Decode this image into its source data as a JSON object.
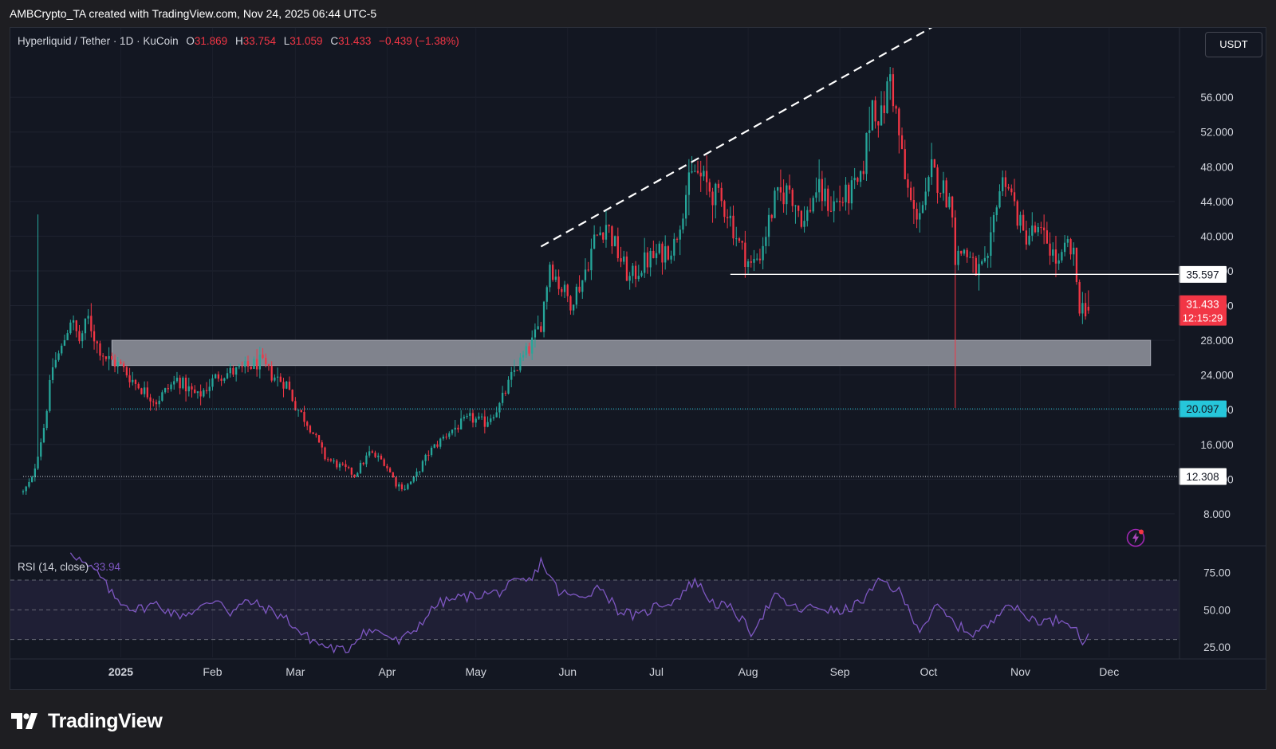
{
  "caption": "AMBCrypto_TA created with TradingView.com, Nov 24, 2025 06:44 UTC-5",
  "legend": {
    "symbol": "Hyperliquid / Tether · 1D · KuCoin",
    "o_label": "O",
    "o": "31.869",
    "h_label": "H",
    "h": "33.754",
    "l_label": "L",
    "l": "31.059",
    "c_label": "C",
    "c": "31.433",
    "change": "−0.439 (−1.38%)"
  },
  "currency_button": "USDT",
  "rsi_legend": {
    "label": "RSI (14, close)",
    "value": "33.94"
  },
  "branding": {
    "wordmark": "TradingView"
  },
  "colors": {
    "up": "#26a69a",
    "down": "#f23645",
    "rsi": "#7e57c2",
    "level_cyan": "#26c6da",
    "zone": "#868993"
  },
  "chart_data": [
    {
      "type": "candlestick",
      "title": "Hyperliquid / Tether · 1D · KuCoin",
      "y_range": [
        4.5,
        64
      ],
      "y_ticks": [
        "56.000",
        "52.000",
        "48.000",
        "44.000",
        "40.000",
        "36.000",
        "32.000",
        "28.000",
        "24.000",
        "20.000",
        "16.000",
        "12.000",
        "8.000"
      ],
      "x_ticks": [
        "2025",
        "Feb",
        "Mar",
        "Apr",
        "May",
        "Jun",
        "Jul",
        "Aug",
        "Sep",
        "Oct",
        "Nov",
        "Dec"
      ],
      "x_range": [
        "2024-11-29",
        "2025-12-14"
      ],
      "close_anchors": [
        [
          "2024-11-29",
          10.5
        ],
        [
          "2024-12-02",
          12.0
        ],
        [
          "2024-12-06",
          18.0
        ],
        [
          "2024-12-09",
          25.0
        ],
        [
          "2024-12-12",
          27.0
        ],
        [
          "2024-12-15",
          30.5
        ],
        [
          "2024-12-18",
          28.0
        ],
        [
          "2024-12-21",
          30.5
        ],
        [
          "2024-12-24",
          27.5
        ],
        [
          "2024-12-27",
          26.0
        ],
        [
          "2025-01-01",
          25.0
        ],
        [
          "2025-01-06",
          23.0
        ],
        [
          "2025-01-13",
          21.0
        ],
        [
          "2025-01-20",
          23.5
        ],
        [
          "2025-01-27",
          21.5
        ],
        [
          "2025-02-03",
          24.0
        ],
        [
          "2025-02-10",
          24.5
        ],
        [
          "2025-02-17",
          25.5
        ],
        [
          "2025-02-21",
          24.0
        ],
        [
          "2025-02-26",
          23.0
        ],
        [
          "2025-03-01",
          20.5
        ],
        [
          "2025-03-06",
          18.0
        ],
        [
          "2025-03-11",
          14.5
        ],
        [
          "2025-03-16",
          13.5
        ],
        [
          "2025-03-21",
          12.5
        ],
        [
          "2025-03-26",
          15.0
        ],
        [
          "2025-03-31",
          14.0
        ],
        [
          "2025-04-04",
          11.5
        ],
        [
          "2025-04-07",
          11.0
        ],
        [
          "2025-04-10",
          12.0
        ],
        [
          "2025-04-15",
          15.0
        ],
        [
          "2025-04-22",
          17.5
        ],
        [
          "2025-04-29",
          19.0
        ],
        [
          "2025-05-04",
          18.5
        ],
        [
          "2025-05-09",
          20.5
        ],
        [
          "2025-05-14",
          24.5
        ],
        [
          "2025-05-19",
          27.0
        ],
        [
          "2025-05-23",
          30.0
        ],
        [
          "2025-05-26",
          37.0
        ],
        [
          "2025-05-29",
          34.5
        ],
        [
          "2025-06-02",
          32.5
        ],
        [
          "2025-06-06",
          35.0
        ],
        [
          "2025-06-10",
          39.5
        ],
        [
          "2025-06-14",
          41.5
        ],
        [
          "2025-06-18",
          38.0
        ],
        [
          "2025-06-22",
          35.0
        ],
        [
          "2025-06-27",
          37.0
        ],
        [
          "2025-07-02",
          38.0
        ],
        [
          "2025-07-07",
          39.0
        ],
        [
          "2025-07-11",
          45.0
        ],
        [
          "2025-07-14",
          47.5
        ],
        [
          "2025-07-20",
          45.0
        ],
        [
          "2025-07-25",
          43.0
        ],
        [
          "2025-07-29",
          39.0
        ],
        [
          "2025-08-02",
          36.5
        ],
        [
          "2025-08-05",
          38.0
        ],
        [
          "2025-08-10",
          44.0
        ],
        [
          "2025-08-15",
          45.5
        ],
        [
          "2025-08-20",
          41.5
        ],
        [
          "2025-08-24",
          45.5
        ],
        [
          "2025-08-29",
          43.5
        ],
        [
          "2025-09-03",
          44.5
        ],
        [
          "2025-09-08",
          46.0
        ],
        [
          "2025-09-12",
          55.5
        ],
        [
          "2025-09-15",
          53.5
        ],
        [
          "2025-09-18",
          58.5
        ],
        [
          "2025-09-20",
          54.0
        ],
        [
          "2025-09-23",
          46.5
        ],
        [
          "2025-09-26",
          42.5
        ],
        [
          "2025-09-30",
          44.0
        ],
        [
          "2025-10-02",
          47.5
        ],
        [
          "2025-10-05",
          46.0
        ],
        [
          "2025-10-09",
          43.5
        ],
        [
          "2025-10-10",
          37.5
        ],
        [
          "2025-10-13",
          38.5
        ],
        [
          "2025-10-17",
          36.0
        ],
        [
          "2025-10-21",
          36.5
        ],
        [
          "2025-10-24",
          44.5
        ],
        [
          "2025-10-27",
          47.0
        ],
        [
          "2025-10-30",
          43.5
        ],
        [
          "2025-11-02",
          40.0
        ],
        [
          "2025-11-06",
          40.5
        ],
        [
          "2025-11-10",
          39.5
        ],
        [
          "2025-11-14",
          36.5
        ],
        [
          "2025-11-17",
          39.0
        ],
        [
          "2025-11-19",
          37.5
        ],
        [
          "2025-11-21",
          32.0
        ],
        [
          "2025-11-24",
          31.433
        ]
      ],
      "annotations": {
        "resistance_trendline": [
          [
            "2025-05-23",
            38.8
          ],
          [
            "2025-10-20",
            67.5
          ]
        ],
        "horizontal_level_35_597": {
          "value": 35.597,
          "from": "2025-07-26",
          "label": "35.597"
        },
        "support_zone": {
          "from": 25.1,
          "to": 28.0,
          "start": "2024-12-29",
          "end": "2025-12-15"
        },
        "level_20_097": {
          "value": 20.097,
          "label": "20.097",
          "style": "dotted"
        },
        "level_12_308": {
          "value": 12.308,
          "label": "12.308",
          "style": "dotted"
        },
        "last_price": {
          "value": 31.433,
          "label": "31.433",
          "countdown": "12:15:29"
        }
      }
    },
    {
      "type": "line",
      "title": "RSI (14, close)",
      "y_range": [
        18,
        92
      ],
      "y_ticks": [
        "75.00",
        "50.00",
        "25.00"
      ],
      "band": [
        30,
        70
      ],
      "midline": 50,
      "last_value": 33.94,
      "rsi_anchors": [
        [
          "2024-12-15",
          90.0
        ],
        [
          "2024-12-20",
          80.0
        ],
        [
          "2024-12-24",
          75.0
        ],
        [
          "2024-12-30",
          58.0
        ],
        [
          "2025-01-06",
          50.0
        ],
        [
          "2025-01-13",
          54.0
        ],
        [
          "2025-01-20",
          46.0
        ],
        [
          "2025-01-27",
          50.0
        ],
        [
          "2025-02-03",
          58.0
        ],
        [
          "2025-02-07",
          48.0
        ],
        [
          "2025-02-13",
          56.0
        ],
        [
          "2025-02-20",
          50.0
        ],
        [
          "2025-02-26",
          44.0
        ],
        [
          "2025-03-03",
          34.0
        ],
        [
          "2025-03-10",
          26.0
        ],
        [
          "2025-03-18",
          22.0
        ],
        [
          "2025-03-24",
          36.0
        ],
        [
          "2025-03-30",
          35.0
        ],
        [
          "2025-04-05",
          28.0
        ],
        [
          "2025-04-10",
          36.0
        ],
        [
          "2025-04-18",
          54.0
        ],
        [
          "2025-04-25",
          58.0
        ],
        [
          "2025-05-02",
          60.0
        ],
        [
          "2025-05-09",
          62.0
        ],
        [
          "2025-05-14",
          68.0
        ],
        [
          "2025-05-20",
          70.0
        ],
        [
          "2025-05-23",
          83.0
        ],
        [
          "2025-05-29",
          62.0
        ],
        [
          "2025-06-05",
          58.0
        ],
        [
          "2025-06-12",
          66.0
        ],
        [
          "2025-06-18",
          50.0
        ],
        [
          "2025-06-25",
          45.0
        ],
        [
          "2025-07-01",
          53.0
        ],
        [
          "2025-07-07",
          56.0
        ],
        [
          "2025-07-14",
          70.0
        ],
        [
          "2025-07-20",
          55.0
        ],
        [
          "2025-07-27",
          50.0
        ],
        [
          "2025-08-02",
          35.0
        ],
        [
          "2025-08-10",
          59.0
        ],
        [
          "2025-08-18",
          50.0
        ],
        [
          "2025-08-25",
          52.0
        ],
        [
          "2025-09-01",
          48.0
        ],
        [
          "2025-09-08",
          55.0
        ],
        [
          "2025-09-15",
          70.0
        ],
        [
          "2025-09-21",
          62.0
        ],
        [
          "2025-09-28",
          37.0
        ],
        [
          "2025-10-04",
          52.0
        ],
        [
          "2025-10-10",
          40.0
        ],
        [
          "2025-10-16",
          34.0
        ],
        [
          "2025-10-22",
          40.0
        ],
        [
          "2025-10-27",
          56.0
        ],
        [
          "2025-11-03",
          45.0
        ],
        [
          "2025-11-10",
          42.0
        ],
        [
          "2025-11-16",
          44.0
        ],
        [
          "2025-11-19",
          40.0
        ],
        [
          "2025-11-22",
          28.0
        ],
        [
          "2025-11-24",
          33.94
        ]
      ]
    }
  ]
}
